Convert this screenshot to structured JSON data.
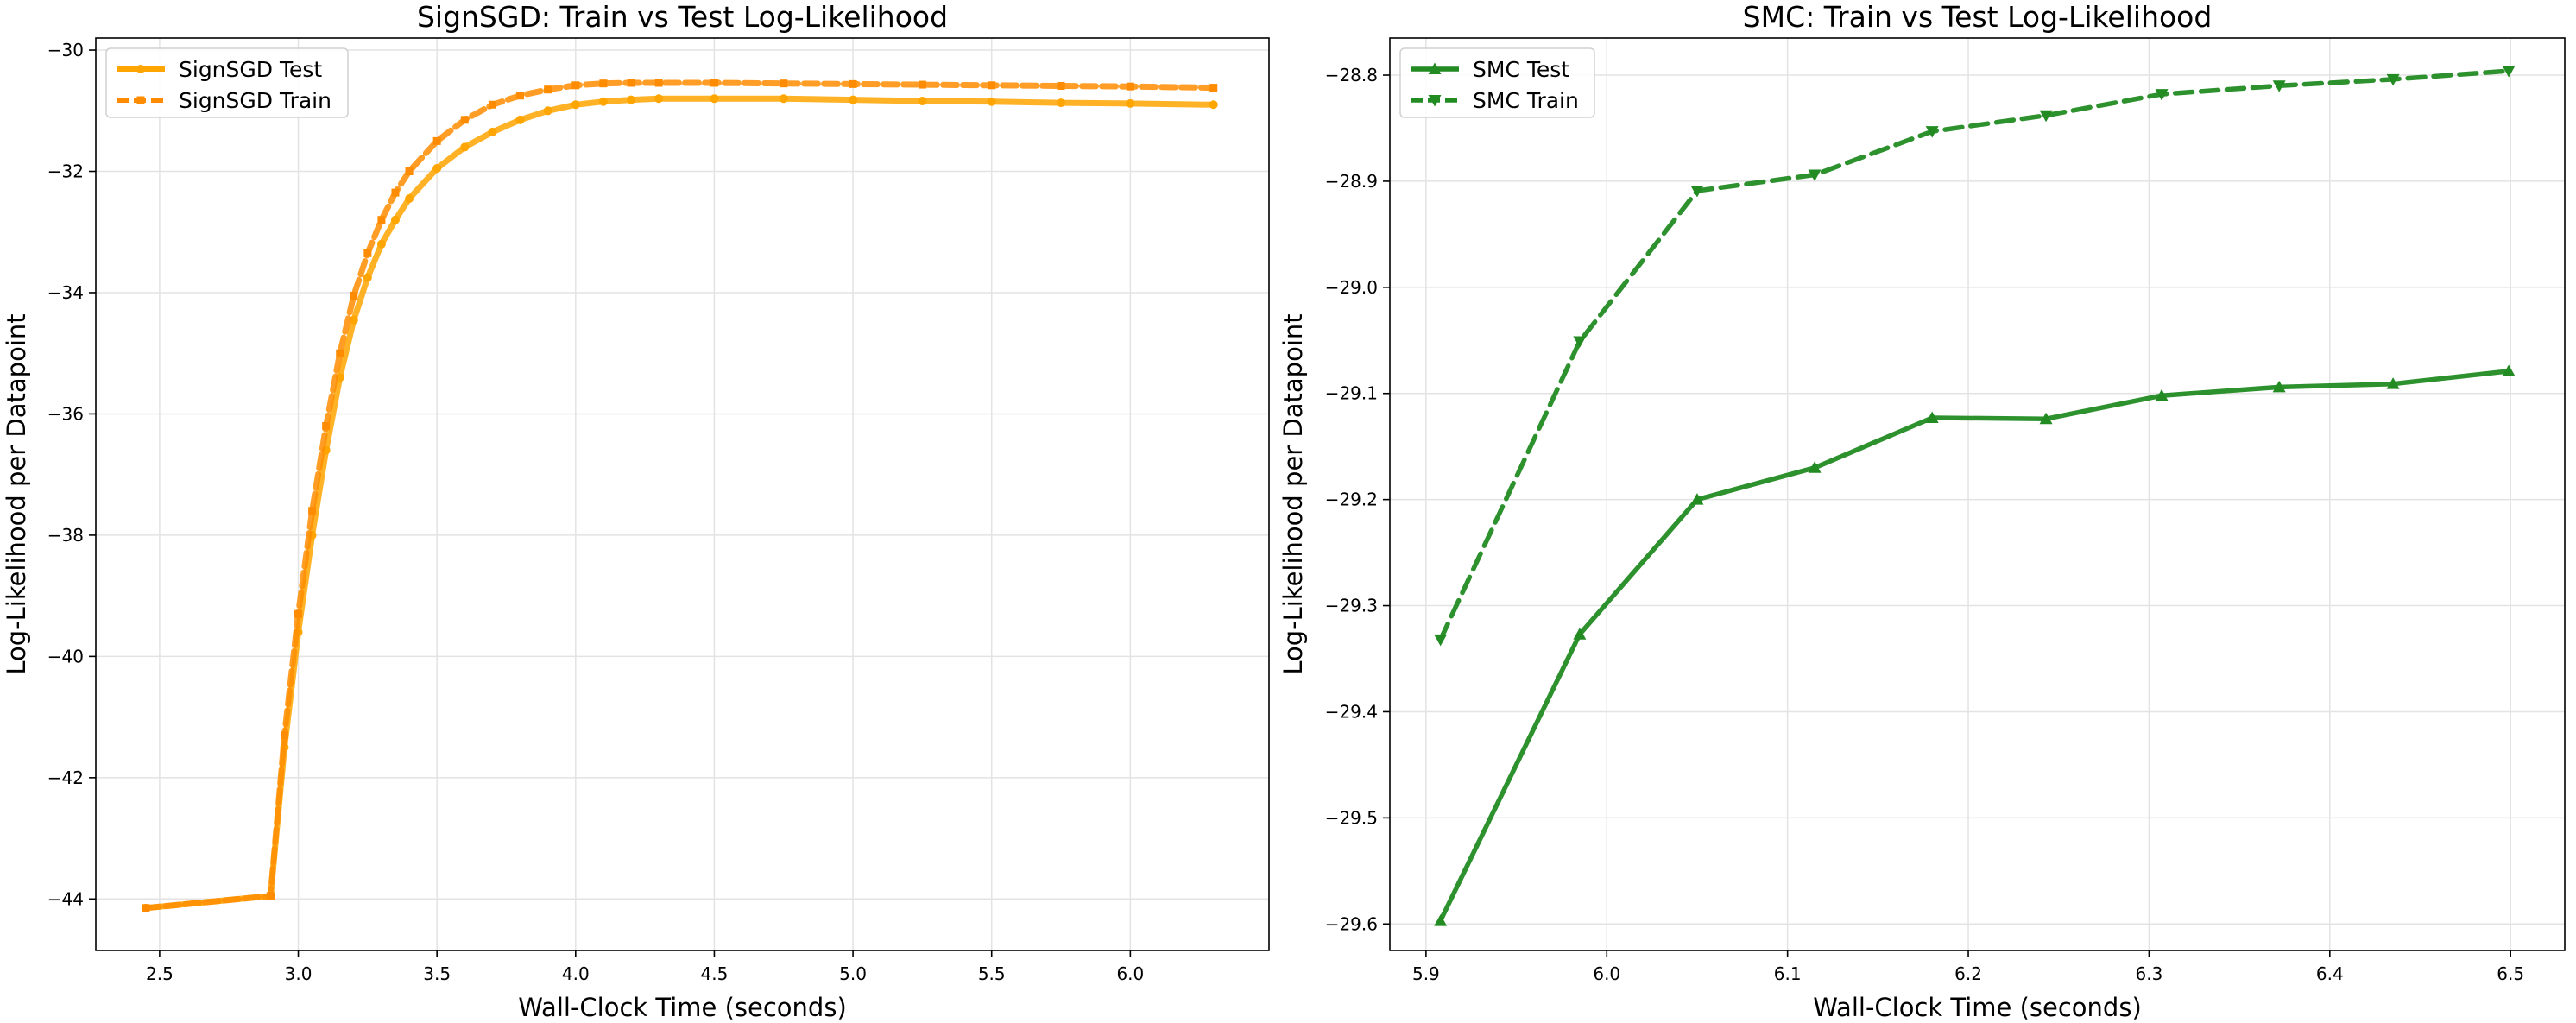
{
  "figure": {
    "background": "#ffffff"
  },
  "chart_data": [
    {
      "type": "line",
      "title": "SignSGD: Train vs Test Log-Likelihood",
      "xlabel": "Wall-Clock Time (seconds)",
      "ylabel": "Log-Likelihood per Datapoint",
      "xlim": [
        2.27,
        6.5
      ],
      "ylim": [
        -44.85,
        -29.8
      ],
      "xticks": [
        2.5,
        3.0,
        3.5,
        4.0,
        4.5,
        5.0,
        5.5,
        6.0
      ],
      "xtick_labels": [
        "2.5",
        "3.0",
        "3.5",
        "4.0",
        "4.5",
        "5.0",
        "5.5",
        "6.0"
      ],
      "yticks": [
        -44,
        -42,
        -40,
        -38,
        -36,
        -34,
        -32,
        -30
      ],
      "ytick_labels": [
        "−44",
        "−42",
        "−40",
        "−38",
        "−36",
        "−34",
        "−32",
        "−30"
      ],
      "grid": true,
      "legend": "upper left",
      "series": [
        {
          "name": "SignSGD Test",
          "color": "#ffa500",
          "linestyle": "solid",
          "marker": "circle",
          "x": [
            2.45,
            2.9,
            2.95,
            3.0,
            3.05,
            3.1,
            3.15,
            3.2,
            3.25,
            3.3,
            3.35,
            3.4,
            3.5,
            3.6,
            3.7,
            3.8,
            3.9,
            4.0,
            4.1,
            4.2,
            4.3,
            4.5,
            4.75,
            5.0,
            5.25,
            5.5,
            5.75,
            6.0,
            6.3
          ],
          "y": [
            -44.15,
            -43.95,
            -41.5,
            -39.6,
            -38.0,
            -36.6,
            -35.4,
            -34.45,
            -33.75,
            -33.2,
            -32.8,
            -32.45,
            -31.95,
            -31.6,
            -31.35,
            -31.15,
            -31.0,
            -30.9,
            -30.85,
            -30.82,
            -30.8,
            -30.8,
            -30.8,
            -30.82,
            -30.84,
            -30.85,
            -30.87,
            -30.88,
            -30.9
          ]
        },
        {
          "name": "SignSGD Train",
          "color": "#ff8c00",
          "linestyle": "dashed",
          "marker": "square",
          "x": [
            2.45,
            2.9,
            2.95,
            3.0,
            3.05,
            3.1,
            3.15,
            3.2,
            3.25,
            3.3,
            3.35,
            3.4,
            3.5,
            3.6,
            3.7,
            3.8,
            3.9,
            4.0,
            4.1,
            4.2,
            4.3,
            4.5,
            4.75,
            5.0,
            5.25,
            5.5,
            5.75,
            6.0,
            6.3
          ],
          "y": [
            -44.15,
            -43.95,
            -41.3,
            -39.3,
            -37.6,
            -36.2,
            -35.0,
            -34.05,
            -33.35,
            -32.8,
            -32.35,
            -32.0,
            -31.5,
            -31.15,
            -30.9,
            -30.75,
            -30.65,
            -30.58,
            -30.55,
            -30.54,
            -30.54,
            -30.54,
            -30.55,
            -30.56,
            -30.57,
            -30.58,
            -30.59,
            -30.6,
            -30.62
          ]
        }
      ]
    },
    {
      "type": "line",
      "title": "SMC: Train vs Test Log-Likelihood",
      "xlabel": "Wall-Clock Time (seconds)",
      "ylabel": "Log-Likelihood per Datapoint",
      "xlim": [
        5.88,
        6.53
      ],
      "ylim": [
        -29.625,
        -28.765
      ],
      "xticks": [
        5.9,
        6.0,
        6.1,
        6.2,
        6.3,
        6.4,
        6.5
      ],
      "xtick_labels": [
        "5.9",
        "6.0",
        "6.1",
        "6.2",
        "6.3",
        "6.4",
        "6.5"
      ],
      "yticks": [
        -29.6,
        -29.5,
        -29.4,
        -29.3,
        -29.2,
        -29.1,
        -29.0,
        -28.9,
        -28.8
      ],
      "ytick_labels": [
        "−29.6",
        "−29.5",
        "−29.4",
        "−29.3",
        "−29.2",
        "−29.1",
        "−29.0",
        "−28.9",
        "−28.8"
      ],
      "grid": true,
      "legend": "upper left",
      "series": [
        {
          "name": "SMC Test",
          "color": "#228b22",
          "linestyle": "solid",
          "marker": "triangle-up",
          "x": [
            5.908,
            5.985,
            6.05,
            6.115,
            6.18,
            6.243,
            6.307,
            6.372,
            6.435,
            6.499
          ],
          "y": [
            -29.597,
            -29.327,
            -29.2,
            -29.17,
            -29.123,
            -29.124,
            -29.102,
            -29.094,
            -29.091,
            -29.079
          ]
        },
        {
          "name": "SMC Train",
          "color": "#228b22",
          "linestyle": "dashed",
          "marker": "triangle-down",
          "x": [
            5.908,
            5.985,
            6.05,
            6.115,
            6.18,
            6.243,
            6.307,
            6.372,
            6.435,
            6.499
          ],
          "y": [
            -29.332,
            -29.051,
            -28.909,
            -28.894,
            -28.853,
            -28.838,
            -28.818,
            -28.81,
            -28.804,
            -28.796
          ]
        }
      ]
    }
  ]
}
